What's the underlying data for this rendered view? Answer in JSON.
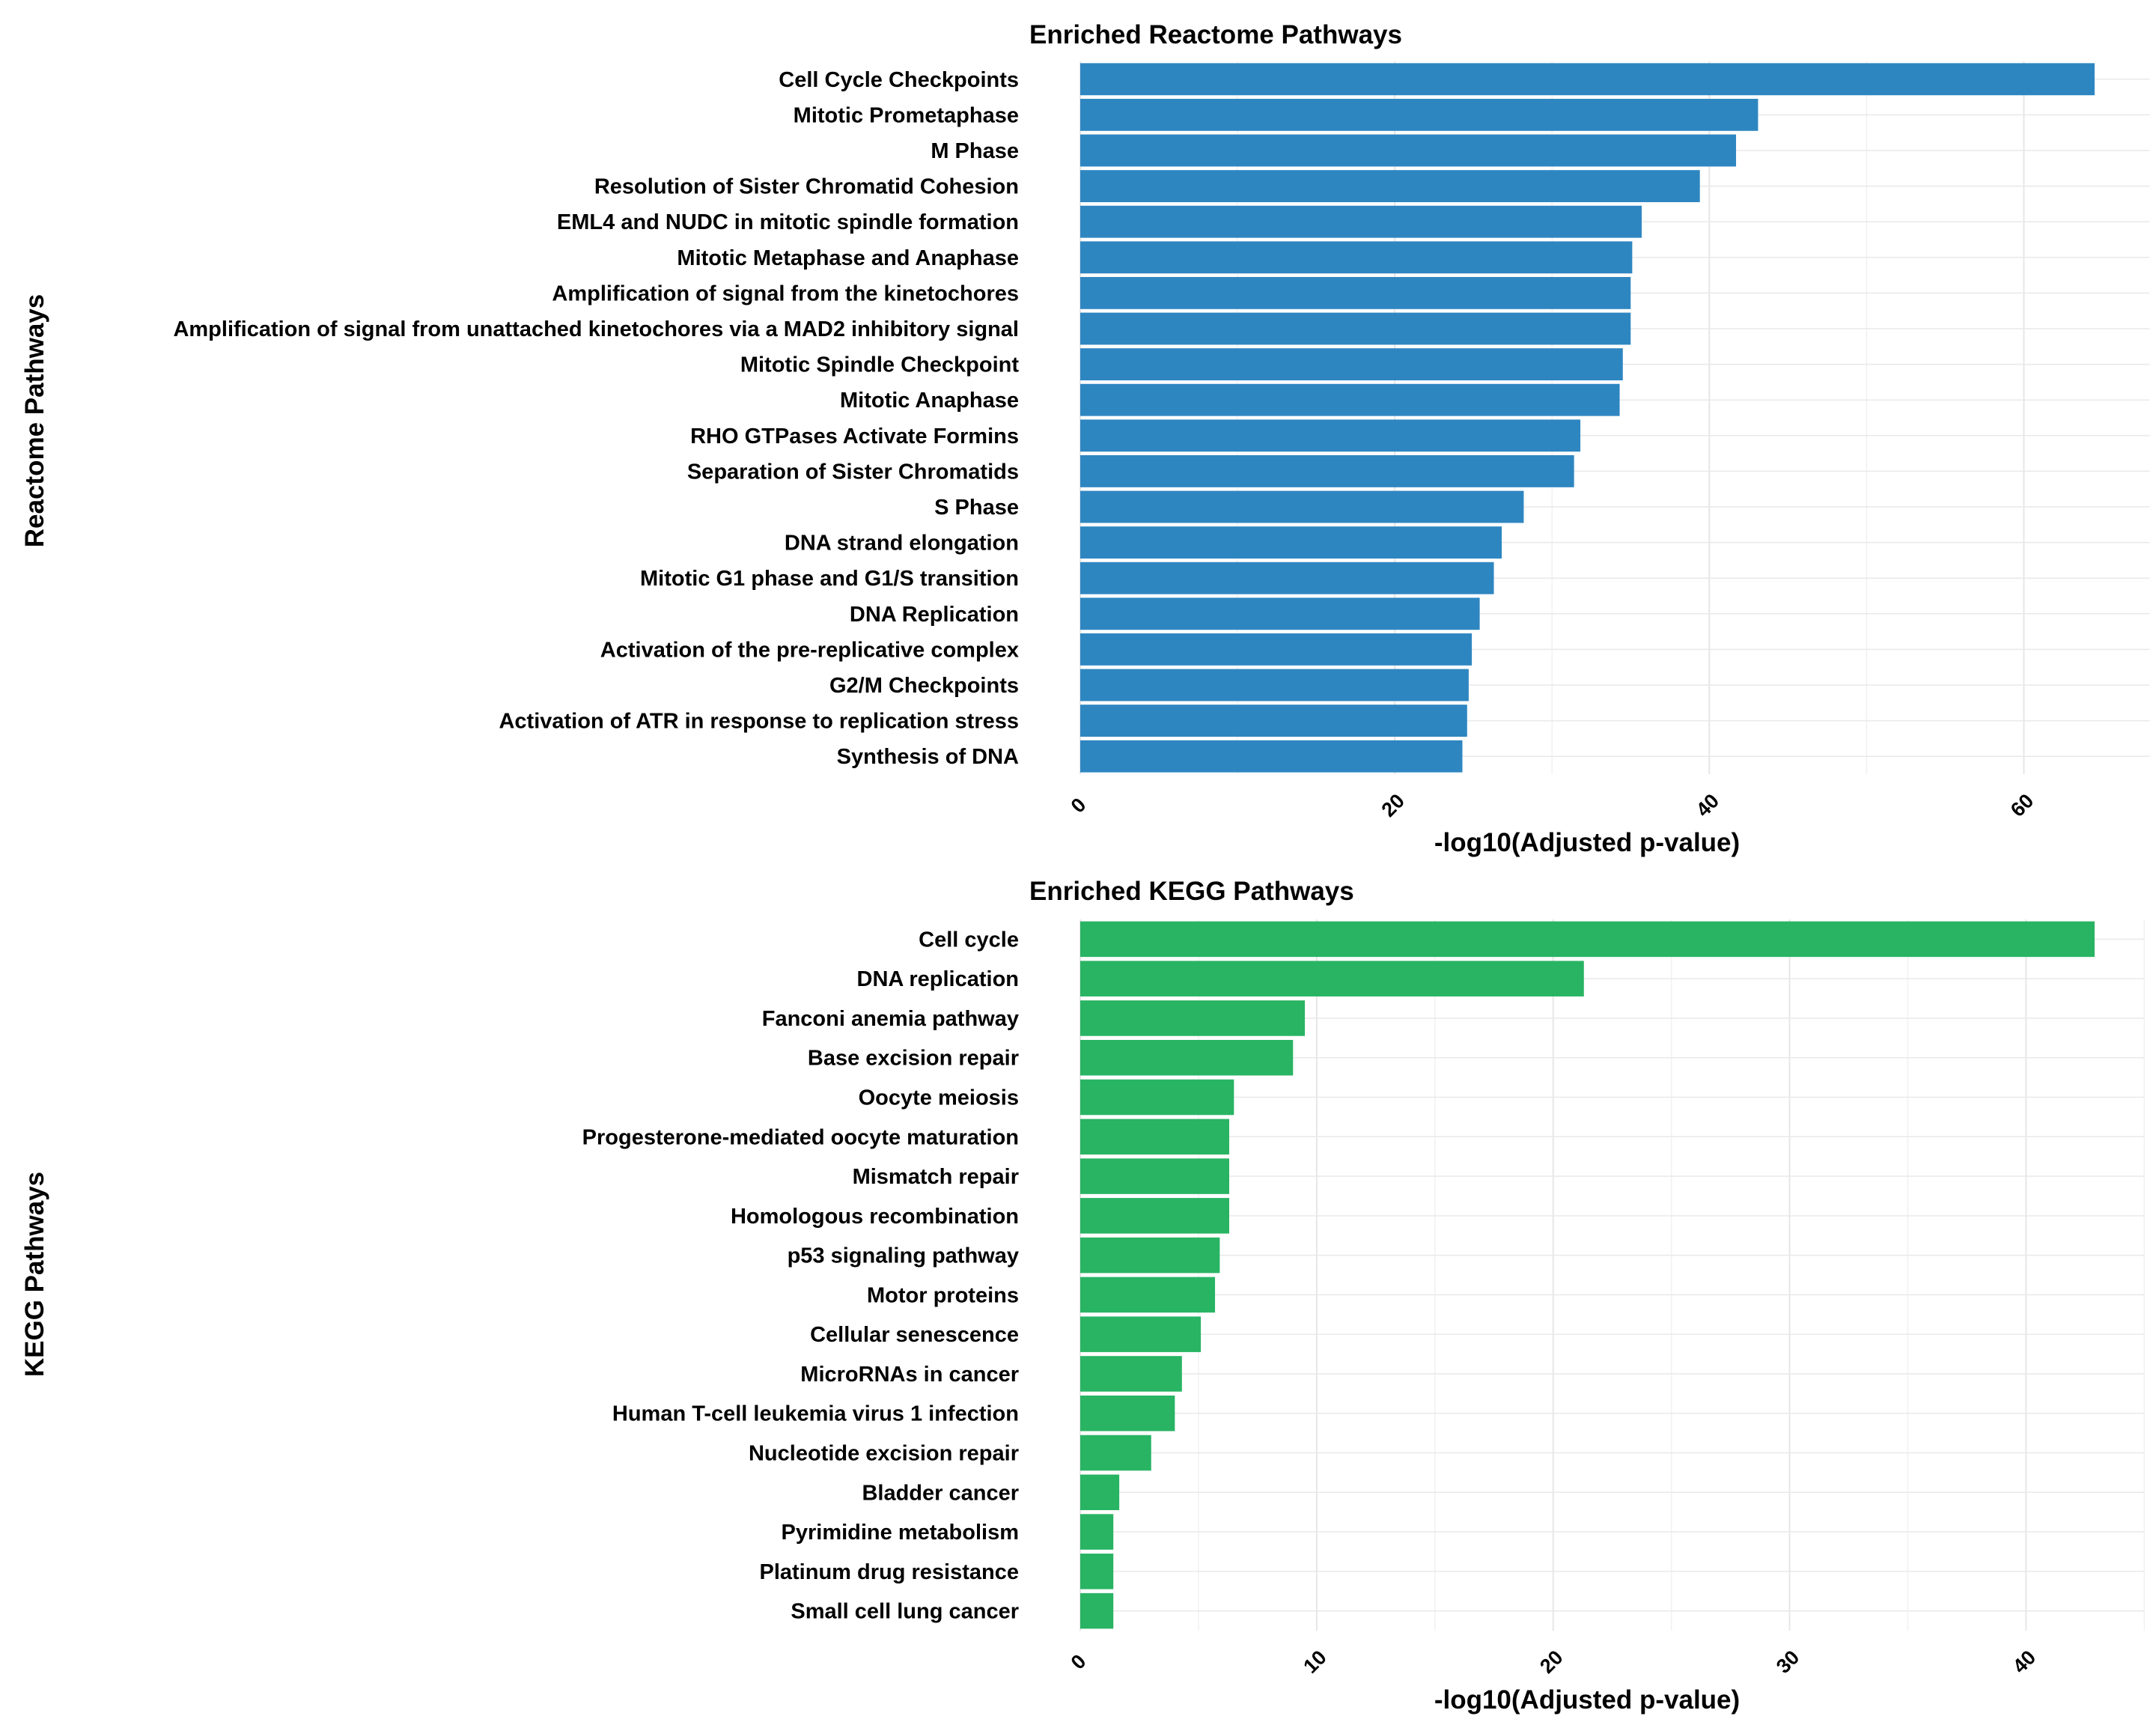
{
  "chart_data": [
    {
      "type": "bar",
      "orientation": "horizontal",
      "title": "Enriched Reactome Pathways",
      "xlabel": "-log10(Adjusted p-value)",
      "ylabel": "Reactome Pathways",
      "color": "#2e86c1",
      "xlim": [
        0,
        68
      ],
      "xticks": [
        0,
        20,
        40,
        60
      ],
      "xtick_labels": [
        "0",
        "20",
        "40",
        "60"
      ],
      "grid": true,
      "legend": "none",
      "categories": [
        "Cell Cycle Checkpoints",
        "Mitotic Prometaphase",
        "M Phase",
        "Resolution of Sister Chromatid Cohesion",
        "EML4 and NUDC in mitotic spindle formation",
        "Mitotic Metaphase and Anaphase",
        "Amplification of signal from the kinetochores",
        "Amplification  of signal from unattached  kinetochores via a MAD2  inhibitory signal",
        "Mitotic Spindle Checkpoint",
        "Mitotic Anaphase",
        "RHO GTPases Activate Formins",
        "Separation of Sister Chromatids",
        "S Phase",
        "DNA strand elongation",
        "Mitotic G1 phase and G1/S transition",
        "DNA Replication",
        "Activation of the pre-replicative complex",
        "G2/M Checkpoints",
        "Activation of ATR in response to replication stress",
        "Synthesis of DNA"
      ],
      "values": [
        64.5,
        43.1,
        41.7,
        39.4,
        35.7,
        35.1,
        35.0,
        35.0,
        34.5,
        34.3,
        31.8,
        31.4,
        28.2,
        26.8,
        26.3,
        25.4,
        24.9,
        24.7,
        24.6,
        24.3
      ]
    },
    {
      "type": "bar",
      "orientation": "horizontal",
      "title": "Enriched KEGG Pathways",
      "xlabel": "-log10(Adjusted p-value)",
      "ylabel": "KEGG Pathways",
      "color": "#28b463",
      "xlim": [
        0,
        45
      ],
      "xticks": [
        0,
        10,
        20,
        30,
        40
      ],
      "xtick_labels": [
        "0",
        "10",
        "20",
        "30",
        "40"
      ],
      "grid": true,
      "legend": "none",
      "categories": [
        "Cell cycle",
        "DNA replication",
        "Fanconi anemia pathway",
        "Base excision repair",
        "Oocyte meiosis",
        "Progesterone-mediated oocyte maturation",
        "Mismatch repair",
        "Homologous recombination",
        "p53 signaling pathway",
        "Motor proteins",
        "Cellular senescence",
        "MicroRNAs in cancer",
        "Human T-cell leukemia virus 1 infection",
        "Nucleotide excision repair",
        "Bladder cancer",
        "Pyrimidine metabolism",
        "Platinum drug resistance",
        "Small cell lung cancer"
      ],
      "values": [
        42.9,
        21.3,
        9.5,
        9.0,
        6.5,
        6.3,
        6.3,
        6.3,
        5.9,
        5.7,
        5.1,
        4.3,
        4.0,
        3.0,
        1.65,
        1.4,
        1.4,
        1.4
      ]
    }
  ]
}
